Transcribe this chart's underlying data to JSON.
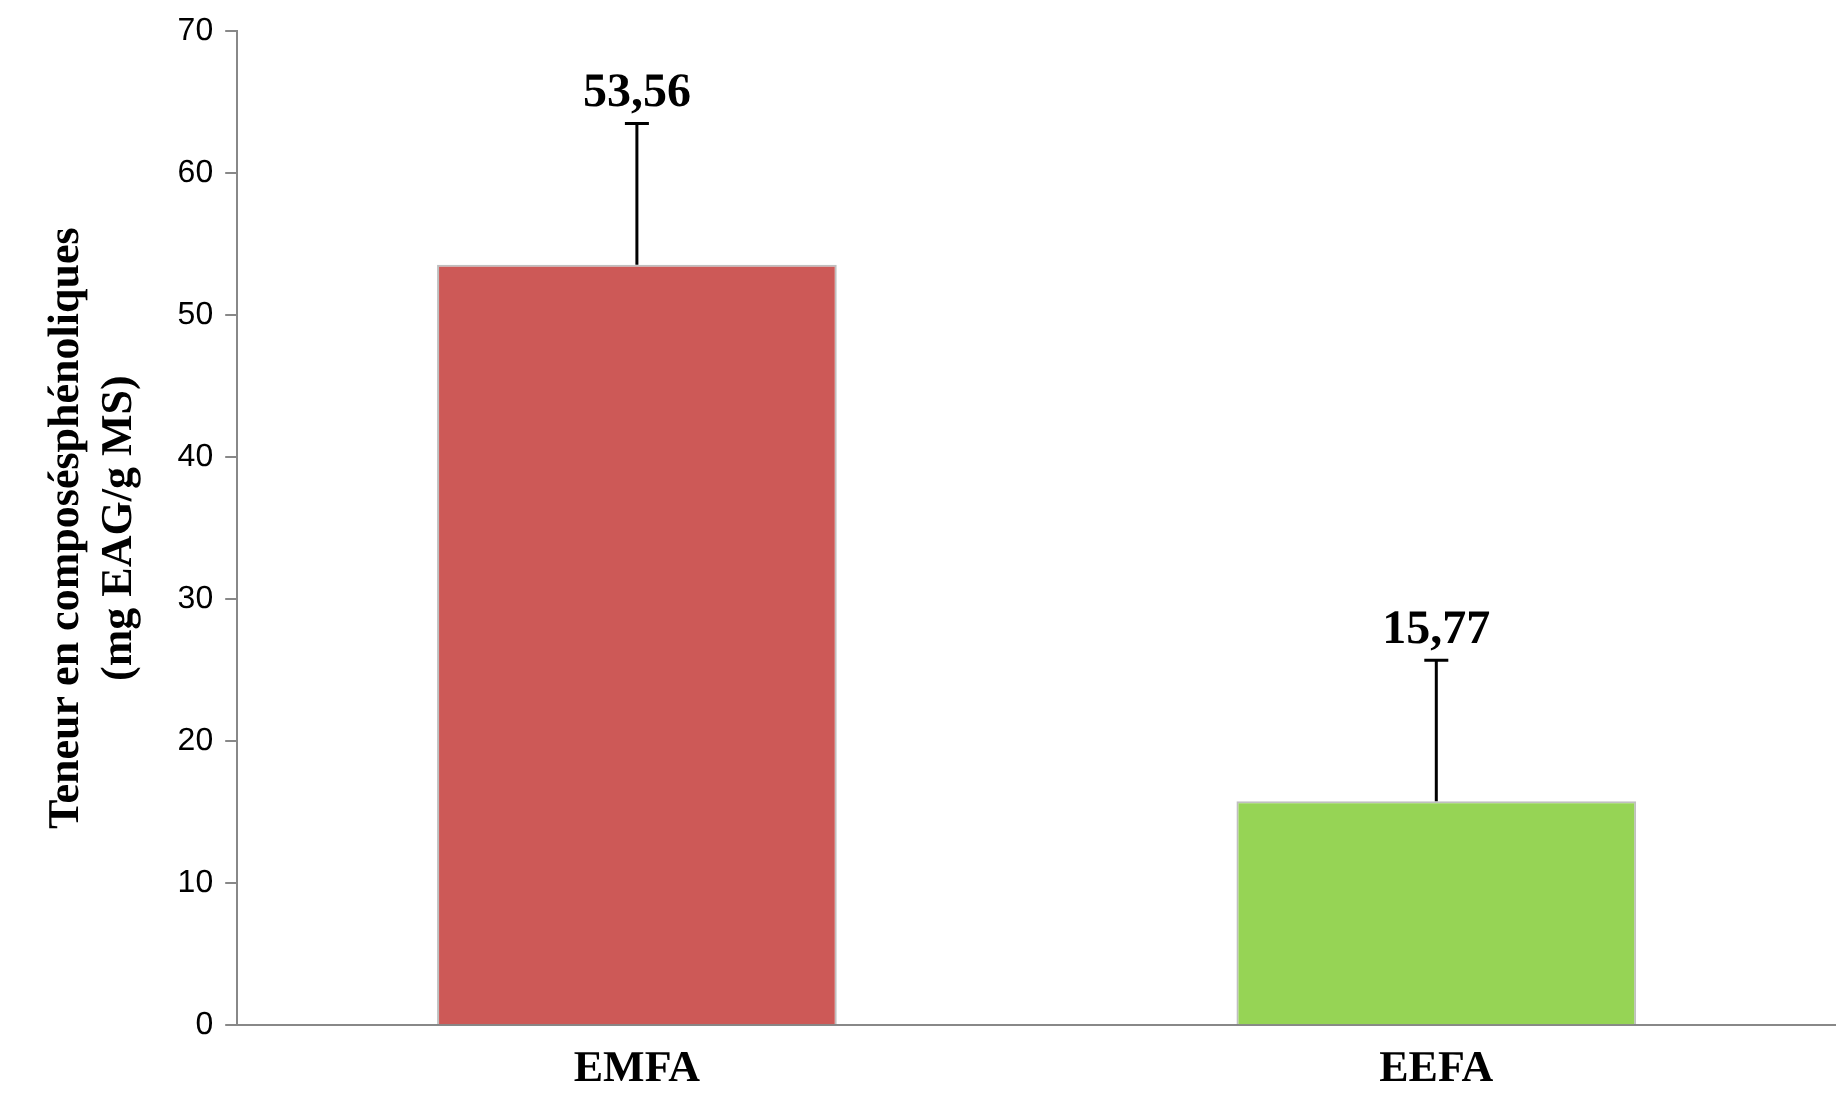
{
  "chart_data": {
    "type": "bar",
    "ylabel": "Teneur en composésphénoliques\n(mg EAG/g MS)",
    "categories": [
      "EMFA",
      "EEFA"
    ],
    "values": [
      53.56,
      15.77
    ],
    "colors": [
      "#cd5957",
      "#96d455"
    ],
    "errors": [
      [
        53.56,
        63.5
      ],
      [
        15.77,
        25.7
      ]
    ],
    "value_labels": [
      "53,56",
      "15,77"
    ],
    "ylim": [
      0,
      70
    ],
    "yticks": [
      0,
      10,
      20,
      30,
      40,
      50,
      60,
      70
    ],
    "grid": false,
    "legend": false
  }
}
